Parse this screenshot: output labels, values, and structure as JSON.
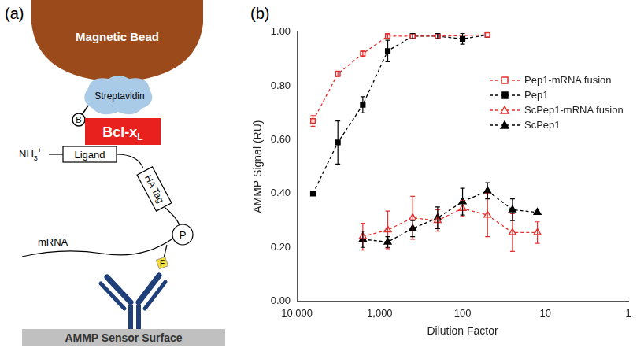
{
  "panel_labels": [
    "(a)",
    "(b)"
  ],
  "diagram": {
    "bead": "Magnetic Bead",
    "streptavidin": "Streptavidin",
    "biotin": "B",
    "target": {
      "text": "Bcl-x",
      "subscript": "L"
    },
    "n_terminus": {
      "text": "NH",
      "subscript": "3",
      "superscript": "+"
    },
    "ligand": "Ligand",
    "tag": "HA Tag",
    "mrna": "mRNA",
    "puromycin": "P",
    "fluorescein": "F",
    "surface": "AMMP Sensor Surface"
  },
  "chart_data": {
    "type": "scatter",
    "x_label": "Dilution Factor",
    "y_label": "AMMP Signal (RU)",
    "log": "x",
    "xlim": [
      10000,
      1
    ],
    "xticks": [
      {
        "value": 10000,
        "label": "10,000"
      },
      {
        "value": 1000,
        "label": "1,000"
      },
      100,
      10,
      1
    ],
    "ylim": [
      0,
      1
    ],
    "yticks": [
      {
        "value": 0,
        "label": "0.00"
      },
      {
        "value": 0.2,
        "label": "0.20"
      },
      {
        "value": 0.4,
        "label": "0.40"
      },
      {
        "value": 0.6,
        "label": "0.60"
      },
      {
        "value": 0.8,
        "label": "0.80"
      },
      {
        "value": 1,
        "label": "1.00"
      }
    ],
    "grid": false,
    "legend": "right",
    "series": [
      {
        "name": "Pep1-mRNA fusion",
        "color": "#e53030",
        "marker": "open_square",
        "line_style": "dashed",
        "x": [
          6400,
          3200,
          1600,
          800,
          400,
          200,
          50
        ],
        "values": [
          0.67,
          0.845,
          0.92,
          0.985,
          0.985,
          0.985,
          0.99
        ],
        "errors": [
          0.02,
          0.01,
          0.01,
          0.01,
          0.01,
          0.01,
          0
        ]
      },
      {
        "name": "Pep1",
        "color": "#000000",
        "marker": "square",
        "line_style": "dashed",
        "x": [
          6400,
          3200,
          1600,
          800,
          400,
          200,
          100,
          50
        ],
        "values": [
          0.4,
          0.59,
          0.73,
          0.93,
          0.985,
          0.985,
          0.975,
          0.99
        ],
        "errors": [
          0,
          0.08,
          0.03,
          0.04,
          0.01,
          0.01,
          0.02,
          0
        ]
      },
      {
        "name": "ScPep1-mRNA fusion",
        "color": "#e53030",
        "marker": "open_triangle",
        "line_style": "dashed",
        "x": [
          1600,
          800,
          400,
          200,
          100,
          50,
          25,
          12.5
        ],
        "values": [
          0.24,
          0.265,
          0.31,
          0.3,
          0.345,
          0.32,
          0.255,
          0.255
        ],
        "errors": [
          0.05,
          0.07,
          0.08,
          0.04,
          0.03,
          0.08,
          0.07,
          0.04
        ]
      },
      {
        "name": "ScPep1",
        "color": "#000000",
        "marker": "triangle",
        "line_style": "dashed",
        "x": [
          1600,
          800,
          400,
          200,
          100,
          50,
          25,
          12.5
        ],
        "values": [
          0.23,
          0.22,
          0.27,
          0.31,
          0.37,
          0.41,
          0.34,
          0.33
        ],
        "errors": [
          0.03,
          0.02,
          0.03,
          0.04,
          0.05,
          0.03,
          0.04,
          0
        ]
      }
    ]
  }
}
